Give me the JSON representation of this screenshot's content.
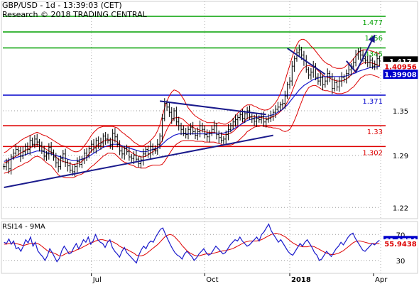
{
  "header": {
    "line1": "GBP/USD - 1d - 13:39:03 (CET)",
    "line2": "Research © 2018 TRADING CENTRAL"
  },
  "chart_data": [
    {
      "type": "line",
      "panel": "price",
      "x_labels": [
        "Jul",
        "Oct",
        "2018",
        "Apr"
      ],
      "y_ticks": [
        1.22,
        1.29,
        1.35
      ],
      "y_tick_labels": [
        "1.22",
        "1.29",
        "1.35"
      ],
      "ylim": [
        1.205,
        1.497
      ],
      "resistance_levels": [
        {
          "label": "1.477",
          "value": 1.477,
          "color": "#00a000"
        },
        {
          "label": "1456",
          "value": 1.456,
          "color": "#00a000"
        },
        {
          "label": "4345",
          "value": 1.4345,
          "color": "#00a000"
        }
      ],
      "pivot_level": {
        "label": "1.371",
        "value": 1.371,
        "color": "#0000cc"
      },
      "support_levels": [
        {
          "label": "1.33",
          "value": 1.33,
          "color": "#dd0000"
        },
        {
          "label": "1.302",
          "value": 1.302,
          "color": "#dd0000"
        }
      ],
      "price_badges": [
        {
          "label": "1.417",
          "value": 1.417,
          "bg": "#000000",
          "fg": "#ffffff"
        },
        {
          "label": "1.40956",
          "value": 1.40956,
          "bg": "#ffffff",
          "fg": "#dd0000"
        },
        {
          "label": "1.39908",
          "value": 1.39908,
          "bg": "#0000cc",
          "fg": "#ffffff"
        }
      ],
      "close": [
        1.275,
        1.28,
        1.272,
        1.288,
        1.293,
        1.298,
        1.296,
        1.289,
        1.295,
        1.302,
        1.298,
        1.31,
        1.305,
        1.312,
        1.308,
        1.303,
        1.296,
        1.289,
        1.292,
        1.301,
        1.294,
        1.288,
        1.28,
        1.275,
        1.286,
        1.292,
        1.281,
        1.276,
        1.27,
        1.268,
        1.275,
        1.282,
        1.278,
        1.285,
        1.293,
        1.29,
        1.299,
        1.305,
        1.3,
        1.31,
        1.303,
        1.307,
        1.316,
        1.312,
        1.31,
        1.304,
        1.32,
        1.315,
        1.305,
        1.296,
        1.292,
        1.299,
        1.295,
        1.288,
        1.286,
        1.29,
        1.285,
        1.279,
        1.284,
        1.292,
        1.298,
        1.292,
        1.302,
        1.298,
        1.296,
        1.305,
        1.316,
        1.34,
        1.36,
        1.355,
        1.348,
        1.34,
        1.35,
        1.335,
        1.33,
        1.325,
        1.32,
        1.318,
        1.325,
        1.328,
        1.322,
        1.317,
        1.322,
        1.33,
        1.325,
        1.318,
        1.315,
        1.32,
        1.325,
        1.33,
        1.318,
        1.314,
        1.31,
        1.312,
        1.318,
        1.325,
        1.33,
        1.335,
        1.338,
        1.341,
        1.345,
        1.34,
        1.346,
        1.35,
        1.342,
        1.339,
        1.336,
        1.34,
        1.338,
        1.342,
        1.335,
        1.338,
        1.34,
        1.343,
        1.348,
        1.352,
        1.355,
        1.358,
        1.36,
        1.37,
        1.385,
        1.39,
        1.41,
        1.42,
        1.428,
        1.432,
        1.425,
        1.418,
        1.405,
        1.398,
        1.402,
        1.41,
        1.395,
        1.39,
        1.395,
        1.385,
        1.39,
        1.4,
        1.395,
        1.38,
        1.388,
        1.382,
        1.39,
        1.395,
        1.392,
        1.4,
        1.405,
        1.41,
        1.415,
        1.425,
        1.43,
        1.425,
        1.42,
        1.418,
        1.415,
        1.418,
        1.41,
        1.412,
        1.42,
        1.417
      ],
      "ma_blue": [
        1.282,
        1.283,
        1.284,
        1.285,
        1.286,
        1.287,
        1.288,
        1.289,
        1.29,
        1.291,
        1.292,
        1.293,
        1.294,
        1.295,
        1.296,
        1.296,
        1.296,
        1.295,
        1.294,
        1.293,
        1.292,
        1.291,
        1.29,
        1.289,
        1.288,
        1.287,
        1.286,
        1.285,
        1.284,
        1.283,
        1.283,
        1.283,
        1.284,
        1.285,
        1.286,
        1.287,
        1.289,
        1.291,
        1.293,
        1.295,
        1.297,
        1.299,
        1.301,
        1.302,
        1.303,
        1.304,
        1.305,
        1.305,
        1.305,
        1.304,
        1.303,
        1.302,
        1.301,
        1.3,
        1.299,
        1.298,
        1.297,
        1.296,
        1.295,
        1.295,
        1.295,
        1.296,
        1.297,
        1.298,
        1.299,
        1.3,
        1.302,
        1.305,
        1.308,
        1.311,
        1.313,
        1.315,
        1.317,
        1.318,
        1.319,
        1.319,
        1.319,
        1.319,
        1.319,
        1.319,
        1.319,
        1.319,
        1.319,
        1.319,
        1.319,
        1.319,
        1.319,
        1.319,
        1.32,
        1.32,
        1.32,
        1.32,
        1.32,
        1.32,
        1.321,
        1.322,
        1.323,
        1.325,
        1.327,
        1.329,
        1.331,
        1.333,
        1.335,
        1.337,
        1.338,
        1.339,
        1.34,
        1.341,
        1.342,
        1.342,
        1.342,
        1.342,
        1.343,
        1.344,
        1.345,
        1.346,
        1.348,
        1.35,
        1.352,
        1.355,
        1.358,
        1.362,
        1.366,
        1.37,
        1.374,
        1.378,
        1.381,
        1.384,
        1.386,
        1.388,
        1.39,
        1.392,
        1.393,
        1.394,
        1.395,
        1.396,
        1.396,
        1.396,
        1.396,
        1.396,
        1.396,
        1.396,
        1.396,
        1.396,
        1.396,
        1.397,
        1.398,
        1.399,
        1.4,
        1.401,
        1.403,
        1.404,
        1.405,
        1.406,
        1.407,
        1.408,
        1.408,
        1.409,
        1.409,
        1.41
      ],
      "ma_red": [
        1.28,
        1.281,
        1.283,
        1.285,
        1.287,
        1.289,
        1.291,
        1.293,
        1.295,
        1.297,
        1.298,
        1.3,
        1.302,
        1.304,
        1.305,
        1.304,
        1.302,
        1.3,
        1.298,
        1.296,
        1.294,
        1.291,
        1.288,
        1.285,
        1.283,
        1.282,
        1.281,
        1.28,
        1.279,
        1.278,
        1.278,
        1.279,
        1.28,
        1.282,
        1.285,
        1.288,
        1.292,
        1.296,
        1.299,
        1.302,
        1.305,
        1.307,
        1.309,
        1.31,
        1.311,
        1.311,
        1.311,
        1.31,
        1.308,
        1.305,
        1.302,
        1.3,
        1.298,
        1.296,
        1.294,
        1.292,
        1.29,
        1.289,
        1.288,
        1.288,
        1.289,
        1.291,
        1.293,
        1.295,
        1.297,
        1.3,
        1.304,
        1.31,
        1.318,
        1.325,
        1.331,
        1.336,
        1.34,
        1.341,
        1.341,
        1.34,
        1.338,
        1.335,
        1.332,
        1.33,
        1.328,
        1.326,
        1.325,
        1.324,
        1.323,
        1.322,
        1.321,
        1.321,
        1.321,
        1.321,
        1.32,
        1.32,
        1.319,
        1.318,
        1.318,
        1.319,
        1.32,
        1.322,
        1.325,
        1.328,
        1.331,
        1.334,
        1.337,
        1.34,
        1.341,
        1.342,
        1.342,
        1.342,
        1.341,
        1.341,
        1.34,
        1.34,
        1.34,
        1.341,
        1.342,
        1.344,
        1.346,
        1.349,
        1.352,
        1.356,
        1.362,
        1.368,
        1.376,
        1.384,
        1.392,
        1.399,
        1.404,
        1.408,
        1.41,
        1.411,
        1.41,
        1.409,
        1.407,
        1.404,
        1.401,
        1.398,
        1.396,
        1.395,
        1.394,
        1.392,
        1.391,
        1.39,
        1.39,
        1.39,
        1.391,
        1.393,
        1.395,
        1.398,
        1.401,
        1.405,
        1.409,
        1.412,
        1.414,
        1.415,
        1.415,
        1.415,
        1.414,
        1.413,
        1.412,
        1.41
      ],
      "band_width": [
        0.014,
        0.014,
        0.015,
        0.015,
        0.016,
        0.016,
        0.016,
        0.017,
        0.017,
        0.017,
        0.017,
        0.017,
        0.016,
        0.016,
        0.016,
        0.016,
        0.016,
        0.017,
        0.018,
        0.018,
        0.018,
        0.019,
        0.02,
        0.021,
        0.021,
        0.021,
        0.021,
        0.02,
        0.019,
        0.018,
        0.017,
        0.016,
        0.016,
        0.017,
        0.018,
        0.019,
        0.02,
        0.021,
        0.022,
        0.022,
        0.022,
        0.021,
        0.02,
        0.019,
        0.018,
        0.018,
        0.018,
        0.018,
        0.019,
        0.019,
        0.019,
        0.019,
        0.018,
        0.018,
        0.017,
        0.016,
        0.016,
        0.015,
        0.015,
        0.015,
        0.016,
        0.016,
        0.017,
        0.018,
        0.02,
        0.023,
        0.027,
        0.032,
        0.036,
        0.038,
        0.039,
        0.039,
        0.038,
        0.036,
        0.034,
        0.031,
        0.028,
        0.025,
        0.022,
        0.02,
        0.018,
        0.017,
        0.016,
        0.015,
        0.014,
        0.014,
        0.013,
        0.013,
        0.013,
        0.013,
        0.013,
        0.014,
        0.014,
        0.014,
        0.014,
        0.015,
        0.016,
        0.017,
        0.018,
        0.019,
        0.019,
        0.019,
        0.019,
        0.018,
        0.017,
        0.016,
        0.014,
        0.013,
        0.012,
        0.011,
        0.011,
        0.011,
        0.012,
        0.013,
        0.015,
        0.017,
        0.02,
        0.024,
        0.029,
        0.034,
        0.039,
        0.043,
        0.046,
        0.047,
        0.047,
        0.045,
        0.042,
        0.038,
        0.034,
        0.03,
        0.027,
        0.025,
        0.023,
        0.022,
        0.021,
        0.02,
        0.019,
        0.018,
        0.018,
        0.017,
        0.017,
        0.017,
        0.017,
        0.017,
        0.017,
        0.018,
        0.018,
        0.018,
        0.019,
        0.019,
        0.019,
        0.018,
        0.018,
        0.017,
        0.017,
        0.016,
        0.016,
        0.016,
        0.016,
        0.016,
        0.016,
        0.016
      ],
      "trendlines": [
        {
          "x1": 0,
          "y1": 1.247,
          "x2": 114,
          "y2": 1.317,
          "color": "#1a1a8c"
        },
        {
          "x1": 66,
          "y1": 1.363,
          "x2": 111,
          "y2": 1.345,
          "color": "#1a1a8c"
        },
        {
          "x1": 120,
          "y1": 1.434,
          "x2": 136,
          "y2": 1.399,
          "color": "#1a1a8c"
        }
      ],
      "forecast_path": [
        {
          "x": 145,
          "y": 1.417
        },
        {
          "x": 149,
          "y": 1.402
        },
        {
          "x": 157,
          "y": 1.452
        }
      ]
    },
    {
      "type": "line",
      "panel": "rsi",
      "title": "RSI14 - 9MA",
      "y_ticks": [
        30,
        70
      ],
      "y_tick_labels": [
        "30",
        "70"
      ],
      "ylim": [
        10,
        90
      ],
      "badges": [
        {
          "label": "61.1774",
          "value": 61.1774,
          "bg": "#0000cc",
          "fg": "#ffffff"
        },
        {
          "label": "55.9438",
          "value": 55.9438,
          "bg": "#ffffff",
          "fg": "#dd0000"
        }
      ],
      "rsi": [
        58,
        56,
        63,
        55,
        60,
        48,
        50,
        44,
        52,
        62,
        57,
        66,
        52,
        58,
        45,
        40,
        36,
        30,
        37,
        48,
        42,
        35,
        28,
        33,
        45,
        52,
        46,
        40,
        42,
        50,
        56,
        48,
        54,
        62,
        58,
        66,
        55,
        60,
        70,
        62,
        58,
        56,
        50,
        58,
        62,
        50,
        44,
        40,
        35,
        44,
        50,
        42,
        38,
        34,
        30,
        26,
        38,
        46,
        52,
        48,
        56,
        60,
        58,
        66,
        72,
        78,
        80,
        71,
        63,
        55,
        48,
        42,
        38,
        36,
        32,
        40,
        44,
        40,
        36,
        30,
        34,
        40,
        44,
        48,
        42,
        38,
        40,
        46,
        52,
        48,
        44,
        40,
        42,
        48,
        54,
        58,
        62,
        60,
        66,
        60,
        56,
        52,
        54,
        58,
        62,
        66,
        60,
        70,
        74,
        80,
        86,
        76,
        70,
        64,
        58,
        62,
        56,
        50,
        44,
        40,
        38,
        44,
        50,
        56,
        52,
        58,
        62,
        56,
        50,
        42,
        38,
        30,
        32,
        38,
        44,
        40,
        36,
        42,
        48,
        52,
        58,
        54,
        60,
        66,
        70,
        72,
        64,
        58,
        52,
        46,
        44,
        48,
        52,
        56,
        54,
        58,
        61.18
      ],
      "rsi_ma": [
        55,
        55,
        56,
        56,
        57,
        56,
        55,
        54,
        53,
        54,
        55,
        56,
        56,
        57,
        56,
        54,
        51,
        48,
        45,
        43,
        42,
        41,
        39,
        37,
        37,
        39,
        41,
        43,
        43,
        44,
        46,
        47,
        49,
        51,
        53,
        55,
        57,
        58,
        60,
        61,
        62,
        62,
        61,
        60,
        60,
        59,
        57,
        55,
        52,
        50,
        48,
        47,
        45,
        43,
        41,
        38,
        37,
        37,
        38,
        40,
        43,
        46,
        49,
        52,
        55,
        59,
        63,
        67,
        69,
        70,
        69,
        66,
        62,
        58,
        53,
        49,
        45,
        42,
        40,
        38,
        37,
        37,
        38,
        39,
        40,
        40,
        40,
        41,
        42,
        43,
        44,
        45,
        45,
        46,
        47,
        48,
        50,
        52,
        54,
        56,
        58,
        59,
        60,
        60,
        60,
        60,
        61,
        62,
        64,
        66,
        68,
        70,
        71,
        72,
        71,
        70,
        68,
        66,
        63,
        60,
        57,
        55,
        53,
        52,
        51,
        51,
        51,
        52,
        52,
        51,
        49,
        47,
        45,
        43,
        41,
        40,
        39,
        39,
        40,
        41,
        43,
        45,
        48,
        51,
        54,
        57,
        59,
        60,
        60,
        59,
        58,
        57,
        56,
        56,
        56,
        56,
        55.94
      ]
    }
  ],
  "x_axis": {
    "labels": [
      "Jul",
      "Oct",
      "2018",
      "Apr"
    ],
    "bold": [
      "2018"
    ]
  }
}
